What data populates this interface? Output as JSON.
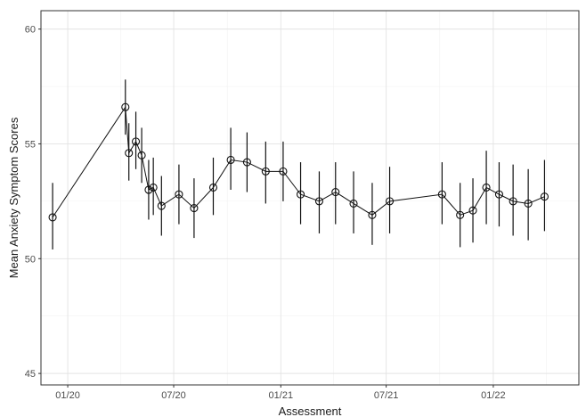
{
  "chart_data": {
    "type": "line",
    "title": "",
    "xlabel": "Assessment",
    "ylabel": "Mean Anxiety Symptom Scores",
    "ylim": [
      44.5,
      60.8
    ],
    "xlim": [
      "2019-11-16",
      "2022-05-28"
    ],
    "x_ticks": [
      {
        "date": "2020-01-01",
        "label": "01/20"
      },
      {
        "date": "2020-07-01",
        "label": "07/20"
      },
      {
        "date": "2021-01-01",
        "label": "01/21"
      },
      {
        "date": "2021-07-01",
        "label": "07/21"
      },
      {
        "date": "2022-01-01",
        "label": "01/22"
      }
    ],
    "y_ticks": [
      45,
      50,
      55,
      60
    ],
    "grid": true,
    "series": [
      {
        "marker": "open-circle",
        "error_bars": true,
        "points": [
          {
            "x": "2019-12-06",
            "y": 51.8,
            "low": 50.4,
            "high": 53.3
          },
          {
            "x": "2020-04-09",
            "y": 56.6,
            "low": 55.4,
            "high": 57.8
          },
          {
            "x": "2020-04-15",
            "y": 54.6,
            "low": 53.4,
            "high": 55.9
          },
          {
            "x": "2020-04-27",
            "y": 55.1,
            "low": 53.9,
            "high": 56.4
          },
          {
            "x": "2020-05-07",
            "y": 54.5,
            "low": 53.3,
            "high": 55.7
          },
          {
            "x": "2020-05-19",
            "y": 53.0,
            "low": 51.7,
            "high": 54.3
          },
          {
            "x": "2020-05-27",
            "y": 53.1,
            "low": 51.9,
            "high": 54.4
          },
          {
            "x": "2020-06-10",
            "y": 52.3,
            "low": 51.0,
            "high": 53.6
          },
          {
            "x": "2020-07-10",
            "y": 52.8,
            "low": 51.5,
            "high": 54.1
          },
          {
            "x": "2020-08-05",
            "y": 52.2,
            "low": 50.9,
            "high": 53.5
          },
          {
            "x": "2020-09-07",
            "y": 53.1,
            "low": 51.9,
            "high": 54.4
          },
          {
            "x": "2020-10-07",
            "y": 54.3,
            "low": 53.0,
            "high": 55.7
          },
          {
            "x": "2020-11-04",
            "y": 54.2,
            "low": 52.9,
            "high": 55.5
          },
          {
            "x": "2020-12-06",
            "y": 53.8,
            "low": 52.4,
            "high": 55.1
          },
          {
            "x": "2021-01-05",
            "y": 53.8,
            "low": 52.5,
            "high": 55.1
          },
          {
            "x": "2021-02-04",
            "y": 52.8,
            "low": 51.5,
            "high": 54.2
          },
          {
            "x": "2021-03-08",
            "y": 52.5,
            "low": 51.1,
            "high": 53.8
          },
          {
            "x": "2021-04-05",
            "y": 52.9,
            "low": 51.5,
            "high": 54.2
          },
          {
            "x": "2021-05-06",
            "y": 52.4,
            "low": 51.1,
            "high": 53.8
          },
          {
            "x": "2021-06-07",
            "y": 51.9,
            "low": 50.6,
            "high": 53.3
          },
          {
            "x": "2021-07-07",
            "y": 52.5,
            "low": 51.1,
            "high": 54.0
          },
          {
            "x": "2021-10-05",
            "y": 52.8,
            "low": 51.5,
            "high": 54.2
          },
          {
            "x": "2021-11-05",
            "y": 51.9,
            "low": 50.5,
            "high": 53.3
          },
          {
            "x": "2021-11-27",
            "y": 52.1,
            "low": 50.7,
            "high": 53.5
          },
          {
            "x": "2021-12-20",
            "y": 53.1,
            "low": 51.5,
            "high": 54.7
          },
          {
            "x": "2022-01-11",
            "y": 52.8,
            "low": 51.4,
            "high": 54.2
          },
          {
            "x": "2022-02-04",
            "y": 52.5,
            "low": 51.0,
            "high": 54.1
          },
          {
            "x": "2022-03-02",
            "y": 52.4,
            "low": 50.8,
            "high": 53.9
          },
          {
            "x": "2022-03-30",
            "y": 52.7,
            "low": 51.2,
            "high": 54.3
          }
        ]
      }
    ]
  }
}
